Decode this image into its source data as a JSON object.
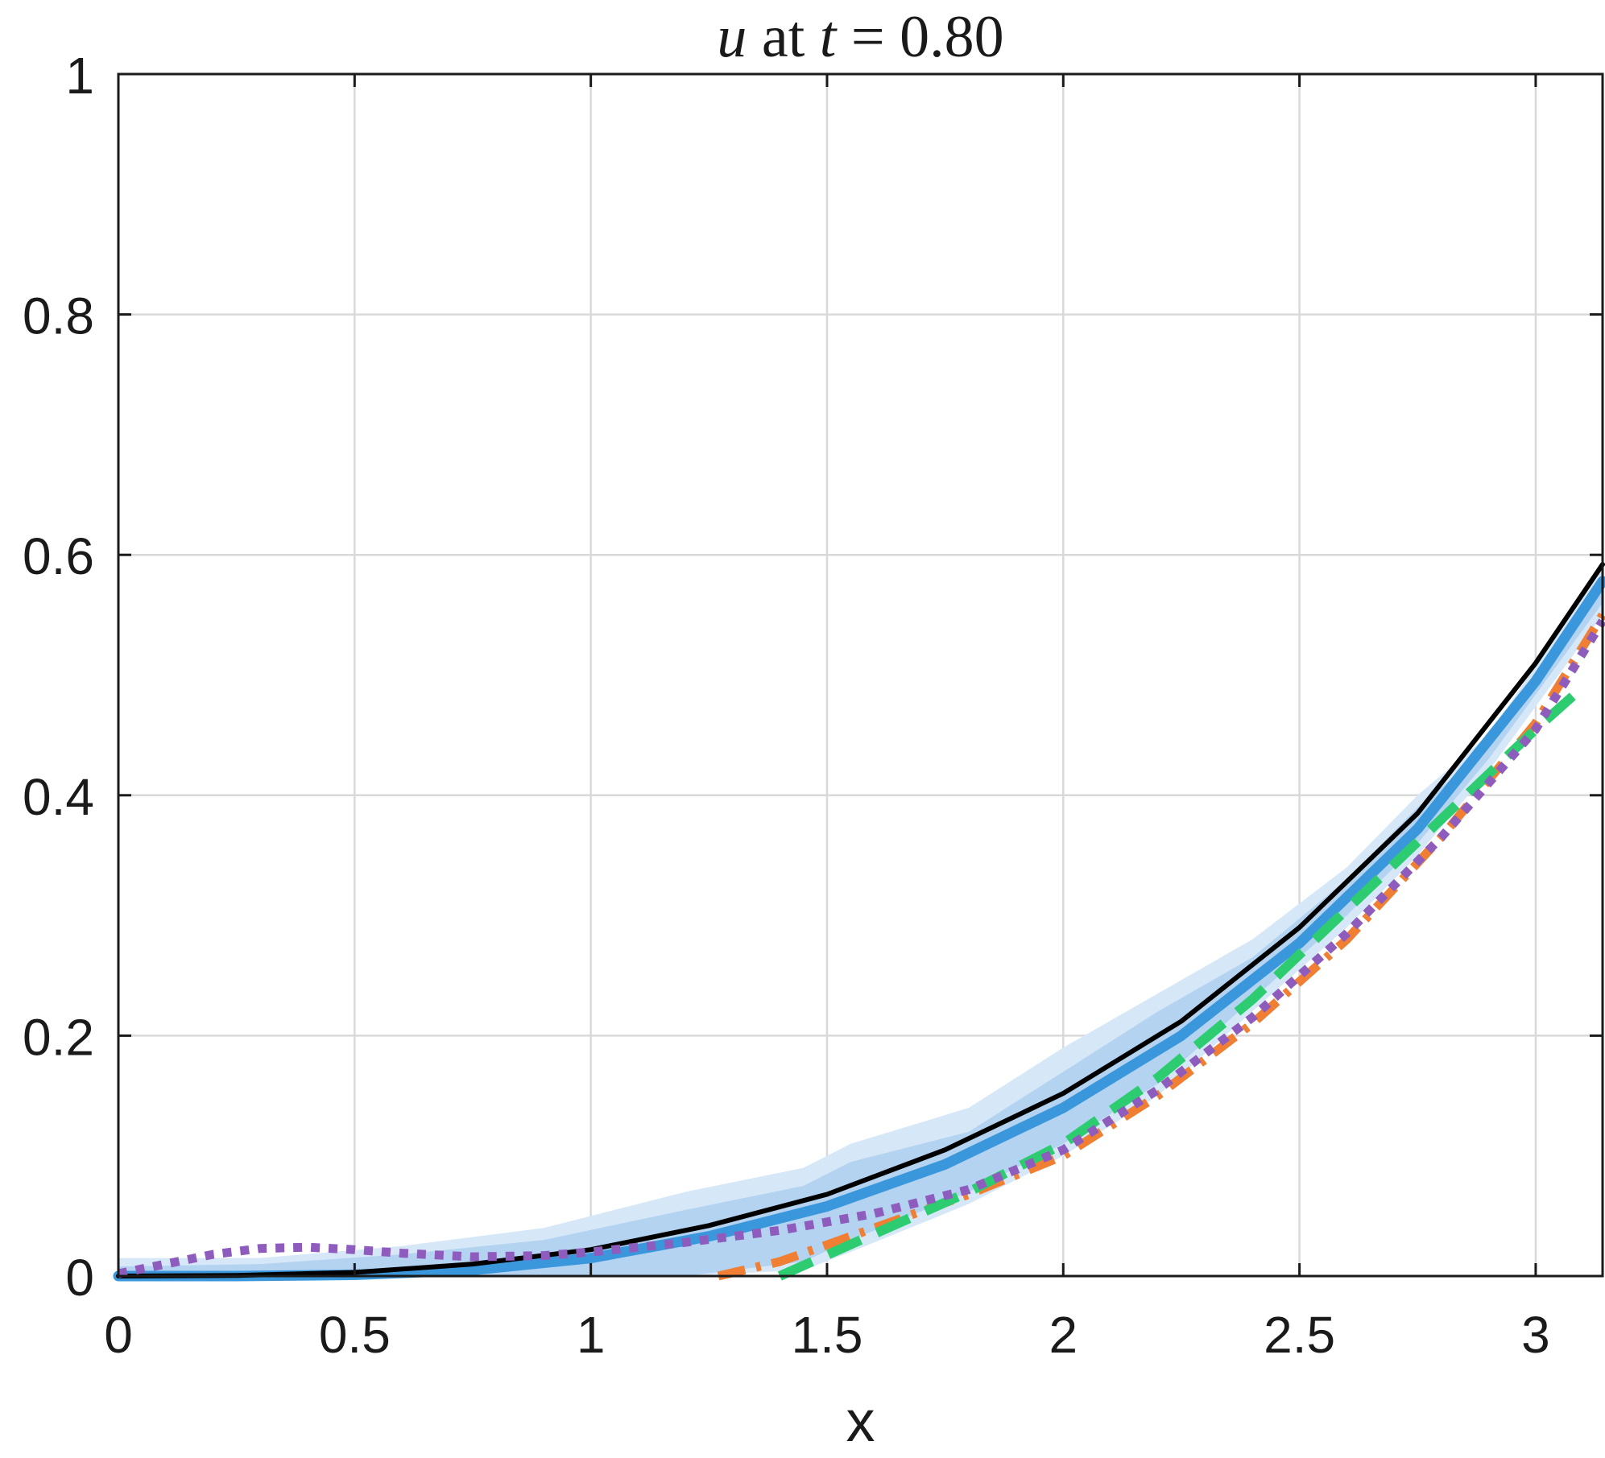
{
  "chart_data": {
    "type": "line",
    "title": {
      "var": "u",
      "mid": " at ",
      "tvar": "t",
      "rest": " = 0.80"
    },
    "xlabel": "x",
    "ylabel": "",
    "xlim": [
      0,
      3.1416
    ],
    "ylim": [
      0,
      1
    ],
    "grid": true,
    "xticks": [
      0,
      0.5,
      1,
      1.5,
      2,
      2.5,
      3
    ],
    "xtick_labels": [
      "0",
      "0.5",
      "1",
      "1.5",
      "2",
      "2.5",
      "3"
    ],
    "yticks": [
      0,
      0.2,
      0.4,
      0.6,
      0.8,
      1
    ],
    "ytick_labels": [
      "0",
      "0.2",
      "0.4",
      "0.6",
      "0.8",
      "1"
    ],
    "bands": [
      {
        "color": "#d6e8f8",
        "x": [
          0,
          0.3,
          0.6,
          0.9,
          1.2,
          1.45,
          1.55,
          1.8,
          2.0,
          2.2,
          2.4,
          2.6,
          2.75,
          2.9,
          3.1416
        ],
        "lower": [
          0,
          0,
          0,
          0,
          0,
          0.005,
          0.02,
          0.06,
          0.1,
          0.15,
          0.22,
          0.29,
          0.35,
          0.42,
          0.55
        ],
        "upper": [
          0.015,
          0.015,
          0.025,
          0.04,
          0.07,
          0.09,
          0.11,
          0.14,
          0.19,
          0.235,
          0.28,
          0.34,
          0.4,
          0.45,
          0.59
        ]
      },
      {
        "color": "#b3d3f1",
        "x": [
          0,
          0.3,
          0.6,
          0.9,
          1.2,
          1.45,
          1.55,
          1.8,
          2.0,
          2.2,
          2.4,
          2.6,
          2.75,
          2.9,
          3.1416
        ],
        "lower": [
          0,
          0,
          0,
          0,
          0,
          0.012,
          0.03,
          0.07,
          0.11,
          0.16,
          0.23,
          0.3,
          0.36,
          0.43,
          0.56
        ],
        "upper": [
          0.008,
          0.01,
          0.018,
          0.03,
          0.055,
          0.075,
          0.095,
          0.12,
          0.17,
          0.22,
          0.265,
          0.33,
          0.39,
          0.44,
          0.585
        ]
      }
    ],
    "series": [
      {
        "color": "#000000",
        "style": "solid",
        "x": [
          0,
          0.25,
          0.5,
          0.75,
          1.0,
          1.25,
          1.5,
          1.75,
          2.0,
          2.25,
          2.5,
          2.75,
          3.0,
          3.1416
        ],
        "y": [
          0,
          0.0005,
          0.003,
          0.01,
          0.022,
          0.042,
          0.068,
          0.105,
          0.152,
          0.212,
          0.29,
          0.385,
          0.51,
          0.592
        ]
      },
      {
        "color": "#3b97dc",
        "style": "solid-thick",
        "x": [
          0,
          0.25,
          0.5,
          0.75,
          1.0,
          1.25,
          1.5,
          1.75,
          2.0,
          2.25,
          2.5,
          2.75,
          3.0,
          3.1416
        ],
        "y": [
          0,
          0,
          0.001,
          0.005,
          0.015,
          0.033,
          0.058,
          0.093,
          0.14,
          0.2,
          0.277,
          0.372,
          0.495,
          0.578
        ]
      },
      {
        "color": "#f07f34",
        "style": "dashdot",
        "x": [
          1.27,
          1.4,
          1.6,
          1.8,
          2.0,
          2.2,
          2.4,
          2.6,
          2.8,
          3.0,
          3.1416
        ],
        "y": [
          0,
          0.012,
          0.04,
          0.068,
          0.1,
          0.15,
          0.21,
          0.28,
          0.365,
          0.46,
          0.55
        ]
      },
      {
        "color": "#2ecc71",
        "style": "dashed",
        "x": [
          1.4,
          1.6,
          1.8,
          2.0,
          2.2,
          2.4,
          2.6,
          2.8,
          3.0,
          3.1
        ],
        "y": [
          0,
          0.035,
          0.07,
          0.11,
          0.165,
          0.23,
          0.305,
          0.38,
          0.455,
          0.49
        ]
      },
      {
        "color": "#8e5cbd",
        "style": "dotted",
        "x": [
          0,
          0.1,
          0.2,
          0.3,
          0.4,
          0.5,
          0.6,
          0.75,
          0.9,
          1.0,
          1.2,
          1.4,
          1.6,
          1.8,
          2.0,
          2.2,
          2.4,
          2.6,
          2.8,
          3.0,
          3.1416
        ],
        "y": [
          0.002,
          0.01,
          0.018,
          0.023,
          0.024,
          0.022,
          0.019,
          0.016,
          0.017,
          0.02,
          0.028,
          0.038,
          0.052,
          0.072,
          0.105,
          0.155,
          0.215,
          0.285,
          0.365,
          0.455,
          0.545
        ]
      }
    ]
  }
}
